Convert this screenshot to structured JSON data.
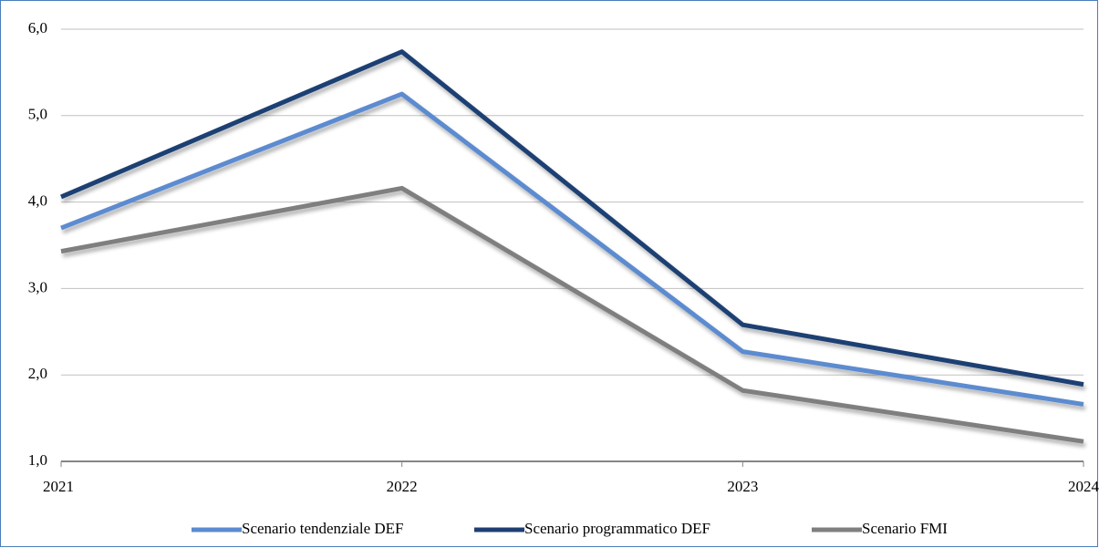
{
  "chart_data": {
    "type": "line",
    "categories": [
      "2021",
      "2022",
      "2023",
      "2024"
    ],
    "series": [
      {
        "name": "Scenario tendenziale DEF",
        "color": "#5b8bd0",
        "values": [
          3.7,
          5.25,
          2.27,
          1.66
        ]
      },
      {
        "name": "Scenario programmatico DEF",
        "color": "#1f3f73",
        "values": [
          4.06,
          5.74,
          2.58,
          1.89
        ]
      },
      {
        "name": "Scenario FMI",
        "color": "#7f7f7f",
        "values": [
          3.43,
          4.16,
          1.82,
          1.23
        ]
      }
    ],
    "ylim": [
      1.0,
      6.0
    ],
    "yticks": [
      {
        "value": 1.0,
        "label": "1,0"
      },
      {
        "value": 2.0,
        "label": "2,0"
      },
      {
        "value": 3.0,
        "label": "3,0"
      },
      {
        "value": 4.0,
        "label": "4,0"
      },
      {
        "value": 5.0,
        "label": "5,0"
      },
      {
        "value": 6.0,
        "label": "6,0"
      }
    ],
    "grid": true,
    "legend": "bottom"
  }
}
